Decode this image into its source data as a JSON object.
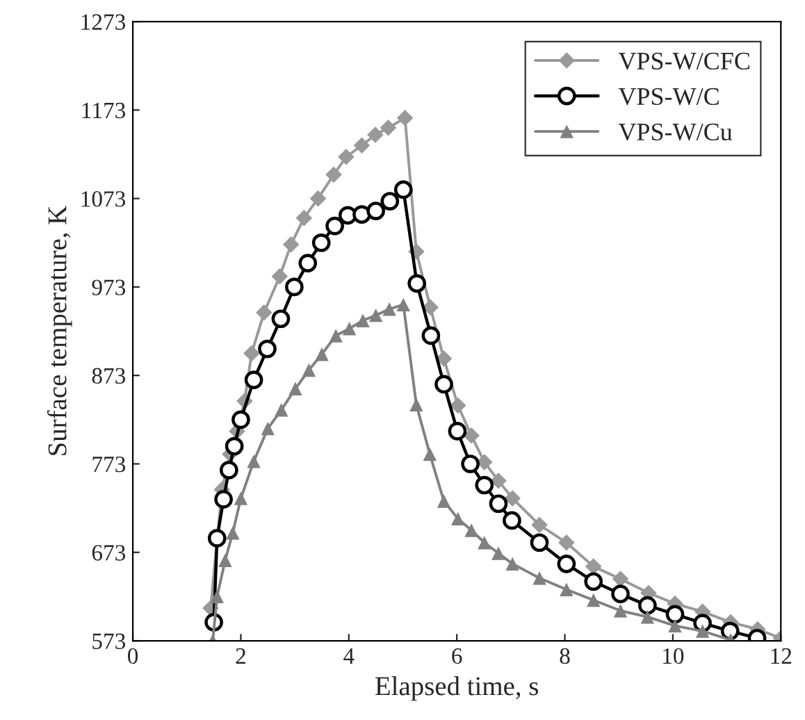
{
  "chart_data": {
    "type": "line",
    "xlabel": "Elapsed time, s",
    "ylabel": "Surface temperature, K",
    "xlim": [
      0,
      12
    ],
    "xticks": [
      0,
      2,
      4,
      6,
      8,
      10,
      12
    ],
    "ylim": [
      573,
      1273
    ],
    "yticks": [
      573,
      673,
      773,
      873,
      973,
      1073,
      1173,
      1273
    ],
    "grid": false,
    "legend": "top right",
    "series": [
      {
        "name": "VPS-W/CFC",
        "color": "#999999",
        "marker": "diamond",
        "x": [
          1.44,
          1.65,
          1.8,
          1.93,
          2.07,
          2.2,
          2.43,
          2.72,
          2.93,
          3.17,
          3.43,
          3.72,
          3.95,
          4.24,
          4.49,
          4.73,
          5.04,
          5.25,
          5.51,
          5.76,
          6.02,
          6.27,
          6.51,
          6.77,
          7.03,
          7.53,
          8.03,
          8.53,
          9.03,
          9.55,
          10.04,
          10.55,
          11.07,
          11.57,
          12
        ],
        "values": [
          610,
          744,
          784,
          810,
          844,
          898,
          944,
          985,
          1021,
          1051,
          1073,
          1100,
          1120,
          1133,
          1145,
          1153,
          1164,
          1013,
          950,
          892,
          839,
          805,
          775,
          754,
          734,
          704,
          684,
          657,
          643,
          627,
          615,
          606,
          594,
          586,
          576
        ]
      },
      {
        "name": "VPS-W/C",
        "color": "#000000",
        "marker": "circle",
        "x": [
          1.5,
          1.56,
          1.68,
          1.78,
          1.88,
          2.0,
          2.24,
          2.49,
          2.74,
          2.99,
          3.24,
          3.49,
          3.74,
          3.98,
          4.24,
          4.5,
          4.76,
          5.01,
          5.26,
          5.52,
          5.76,
          6.01,
          6.25,
          6.51,
          6.77,
          7.02,
          7.53,
          8.03,
          8.53,
          9.03,
          9.53,
          10.04,
          10.55,
          11.06,
          11.56
        ],
        "values": [
          594,
          689,
          733,
          766,
          793,
          823,
          868,
          903,
          937,
          973,
          1000,
          1023,
          1042,
          1054,
          1055,
          1059,
          1070,
          1083,
          977,
          918,
          863,
          810,
          773,
          749,
          728,
          709,
          684,
          660,
          640,
          626,
          613,
          603,
          593,
          584,
          576
        ]
      },
      {
        "name": "VPS-W/Cu",
        "color": "#808080",
        "marker": "triangle",
        "x": [
          1.48,
          1.56,
          1.71,
          1.85,
          2.0,
          2.24,
          2.5,
          2.75,
          3.01,
          3.26,
          3.5,
          3.76,
          4.01,
          4.26,
          4.5,
          4.75,
          5.01,
          5.25,
          5.5,
          5.76,
          6.02,
          6.27,
          6.51,
          6.77,
          7.03,
          7.53,
          8.03,
          8.53,
          9.03,
          9.53,
          10.04,
          10.55,
          11.07
        ],
        "values": [
          573,
          623,
          664,
          695,
          734,
          776,
          813,
          834,
          858,
          879,
          897,
          918,
          926,
          935,
          941,
          948,
          953,
          840,
          784,
          731,
          711,
          698,
          684,
          672,
          660,
          644,
          631,
          619,
          607,
          600,
          590,
          584,
          574
        ]
      }
    ]
  }
}
